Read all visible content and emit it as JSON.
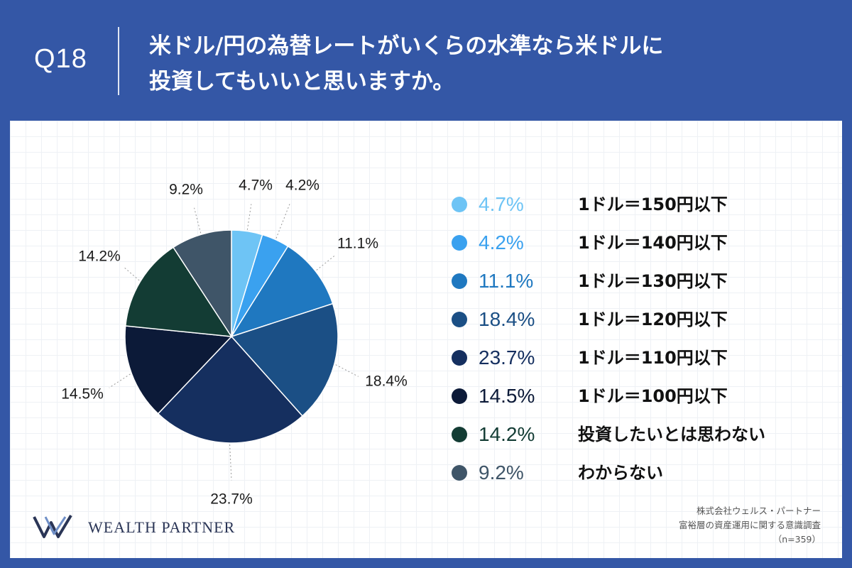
{
  "header": {
    "question_number": "Q18",
    "question_line1": "米ドル/円の為替レートがいくらの水準なら米ドルに",
    "question_line2": "投資してもいいと思いますか。"
  },
  "chart_data": {
    "type": "pie",
    "title": "",
    "slices": [
      {
        "label": "1ドル＝150円以下",
        "value": 4.7,
        "pct_text": "4.7%",
        "color": "#6ec4f5"
      },
      {
        "label": "1ドル＝140円以下",
        "value": 4.2,
        "pct_text": "4.2%",
        "color": "#3aa1ef"
      },
      {
        "label": "1ドル＝130円以下",
        "value": 11.1,
        "pct_text": "11.1%",
        "color": "#1f78c0"
      },
      {
        "label": "1ドル＝120円以下",
        "value": 18.4,
        "pct_text": "18.4%",
        "color": "#1b4f85"
      },
      {
        "label": "1ドル＝110円以下",
        "value": 23.7,
        "pct_text": "23.7%",
        "color": "#152f5f"
      },
      {
        "label": "1ドル＝100円以下",
        "value": 14.5,
        "pct_text": "14.5%",
        "color": "#0c1a38"
      },
      {
        "label": "投資したいとは思わない",
        "value": 14.2,
        "pct_text": "14.2%",
        "color": "#133c34"
      },
      {
        "label": "わからない",
        "value": 9.2,
        "pct_text": "9.2%",
        "color": "#3f5568"
      }
    ],
    "legend_position": "right"
  },
  "logo": {
    "text": "WEALTH PARTNER"
  },
  "source": {
    "line1": "株式会社ウェルス・パートナー",
    "line2": "富裕層の資産運用に関する意識調査",
    "line3": "（n=359）"
  }
}
